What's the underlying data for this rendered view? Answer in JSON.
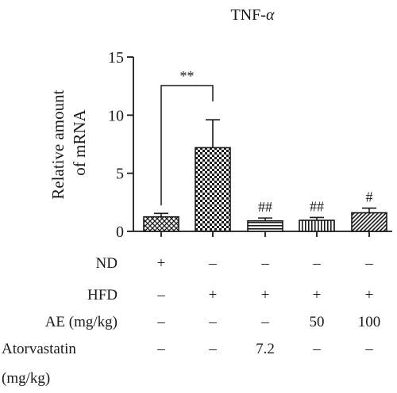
{
  "chart_data": {
    "type": "bar",
    "title_main": "TNF-",
    "title_greek": "α",
    "ylabel_line1": "Relative amount",
    "ylabel_line2": "of mRNA",
    "ylim": [
      0,
      15
    ],
    "yticks": [
      0,
      5,
      10,
      15
    ],
    "values": [
      1.25,
      7.2,
      0.9,
      0.95,
      1.6
    ],
    "errors": [
      0.3,
      2.4,
      0.25,
      0.25,
      0.4
    ],
    "patterns": [
      "crosshatch",
      "checker",
      "hstripe",
      "vstripe",
      "diagonal"
    ],
    "annotations": [
      "",
      "",
      "##",
      "##",
      "#"
    ],
    "significance": {
      "label": "**",
      "from": 0,
      "to": 1
    },
    "grid": false,
    "legend": "none"
  },
  "condition_rows": [
    {
      "label": "ND",
      "values": [
        "+",
        "–",
        "–",
        "–",
        "–"
      ]
    },
    {
      "label": "HFD",
      "values": [
        "–",
        "+",
        "+",
        "+",
        "+"
      ]
    },
    {
      "label": "AE (mg/kg)",
      "values": [
        "–",
        "–",
        "–",
        "50",
        "100"
      ]
    },
    {
      "label": "Atorvastatin",
      "label2": "(mg/kg)",
      "values": [
        "–",
        "–",
        "7.2",
        "–",
        "–"
      ]
    }
  ]
}
